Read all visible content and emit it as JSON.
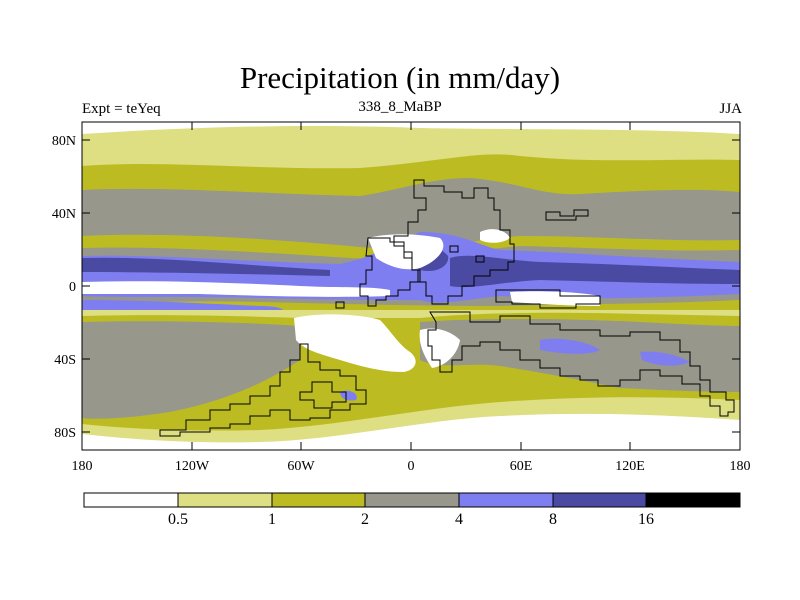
{
  "title": "Precipitation (in mm/day)",
  "subtitle_left": "Expt = teYeq",
  "subtitle_center": "338_8_MaBP",
  "subtitle_right": "JJA",
  "lat_labels": [
    "80N",
    "40N",
    "0",
    "40S",
    "80S"
  ],
  "lon_labels": [
    "180",
    "120W",
    "60W",
    "0",
    "60E",
    "120E",
    "180"
  ],
  "legend": {
    "boundaries": [
      "0.5",
      "1",
      "2",
      "4",
      "8",
      "16"
    ],
    "colors": [
      "#ffffff",
      "#dede82",
      "#bcbc22",
      "#97978b",
      "#7e7ef0",
      "#4a4aa2",
      "#000000"
    ]
  },
  "colors": {
    "white": "#ffffff",
    "light_yellow": "#dede82",
    "olive": "#bcbc22",
    "gray": "#97978b",
    "light_blue": "#7e7ef0",
    "dark_blue": "#4a4aa2",
    "coast": "#000000"
  }
}
